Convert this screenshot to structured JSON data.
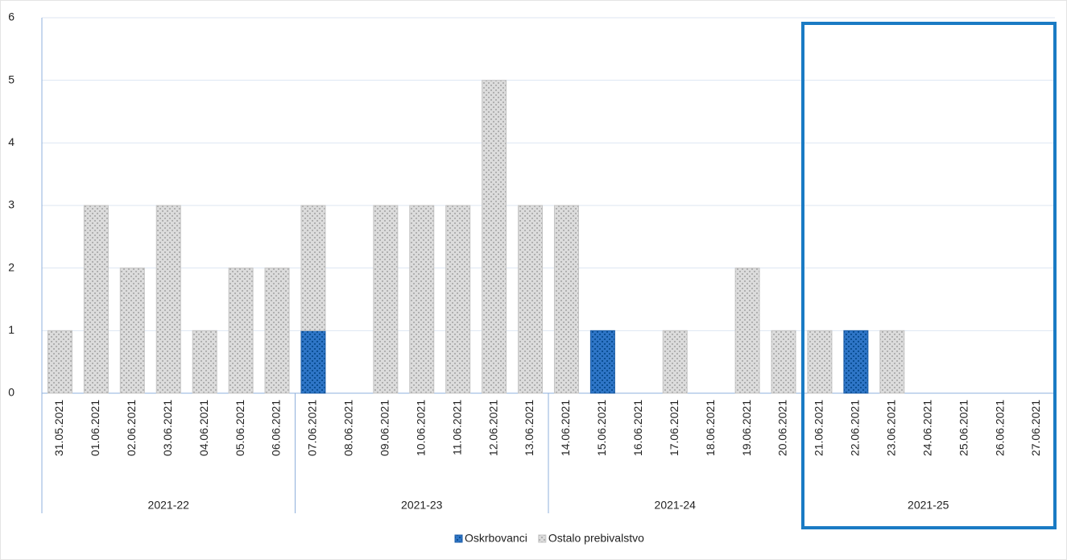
{
  "chart_data": {
    "type": "bar",
    "stacked": true,
    "categories": [
      "31.05.2021",
      "01.06.2021",
      "02.06.2021",
      "03.06.2021",
      "04.06.2021",
      "05.06.2021",
      "06.06.2021",
      "07.06.2021",
      "08.06.2021",
      "09.06.2021",
      "10.06.2021",
      "11.06.2021",
      "12.06.2021",
      "13.06.2021",
      "14.06.2021",
      "15.06.2021",
      "16.06.2021",
      "17.06.2021",
      "18.06.2021",
      "19.06.2021",
      "20.06.2021",
      "21.06.2021",
      "22.06.2021",
      "23.06.2021",
      "24.06.2021",
      "25.06.2021",
      "26.06.2021",
      "27.06.2021"
    ],
    "groups": [
      {
        "label": "2021-22",
        "size": 7
      },
      {
        "label": "2021-23",
        "size": 7
      },
      {
        "label": "2021-24",
        "size": 7
      },
      {
        "label": "2021-25",
        "size": 7
      }
    ],
    "series": [
      {
        "name": "Oskrbovanci",
        "color": "#2e75c6",
        "values": [
          0,
          0,
          0,
          0,
          0,
          0,
          0,
          1,
          0,
          0,
          0,
          0,
          0,
          0,
          0,
          1,
          0,
          0,
          0,
          0,
          0,
          0,
          1,
          0,
          0,
          0,
          0,
          0
        ]
      },
      {
        "name": "Ostalo prebivalstvo",
        "color": "#dcdcdc",
        "values": [
          1,
          3,
          2,
          3,
          1,
          2,
          2,
          2,
          0,
          3,
          3,
          3,
          5,
          3,
          3,
          0,
          0,
          1,
          0,
          2,
          1,
          1,
          0,
          1,
          0,
          0,
          0,
          0
        ]
      }
    ],
    "ylim": [
      0,
      6
    ],
    "yticks": [
      0,
      1,
      2,
      3,
      4,
      5,
      6
    ],
    "grid": true,
    "legend": "bottom"
  }
}
